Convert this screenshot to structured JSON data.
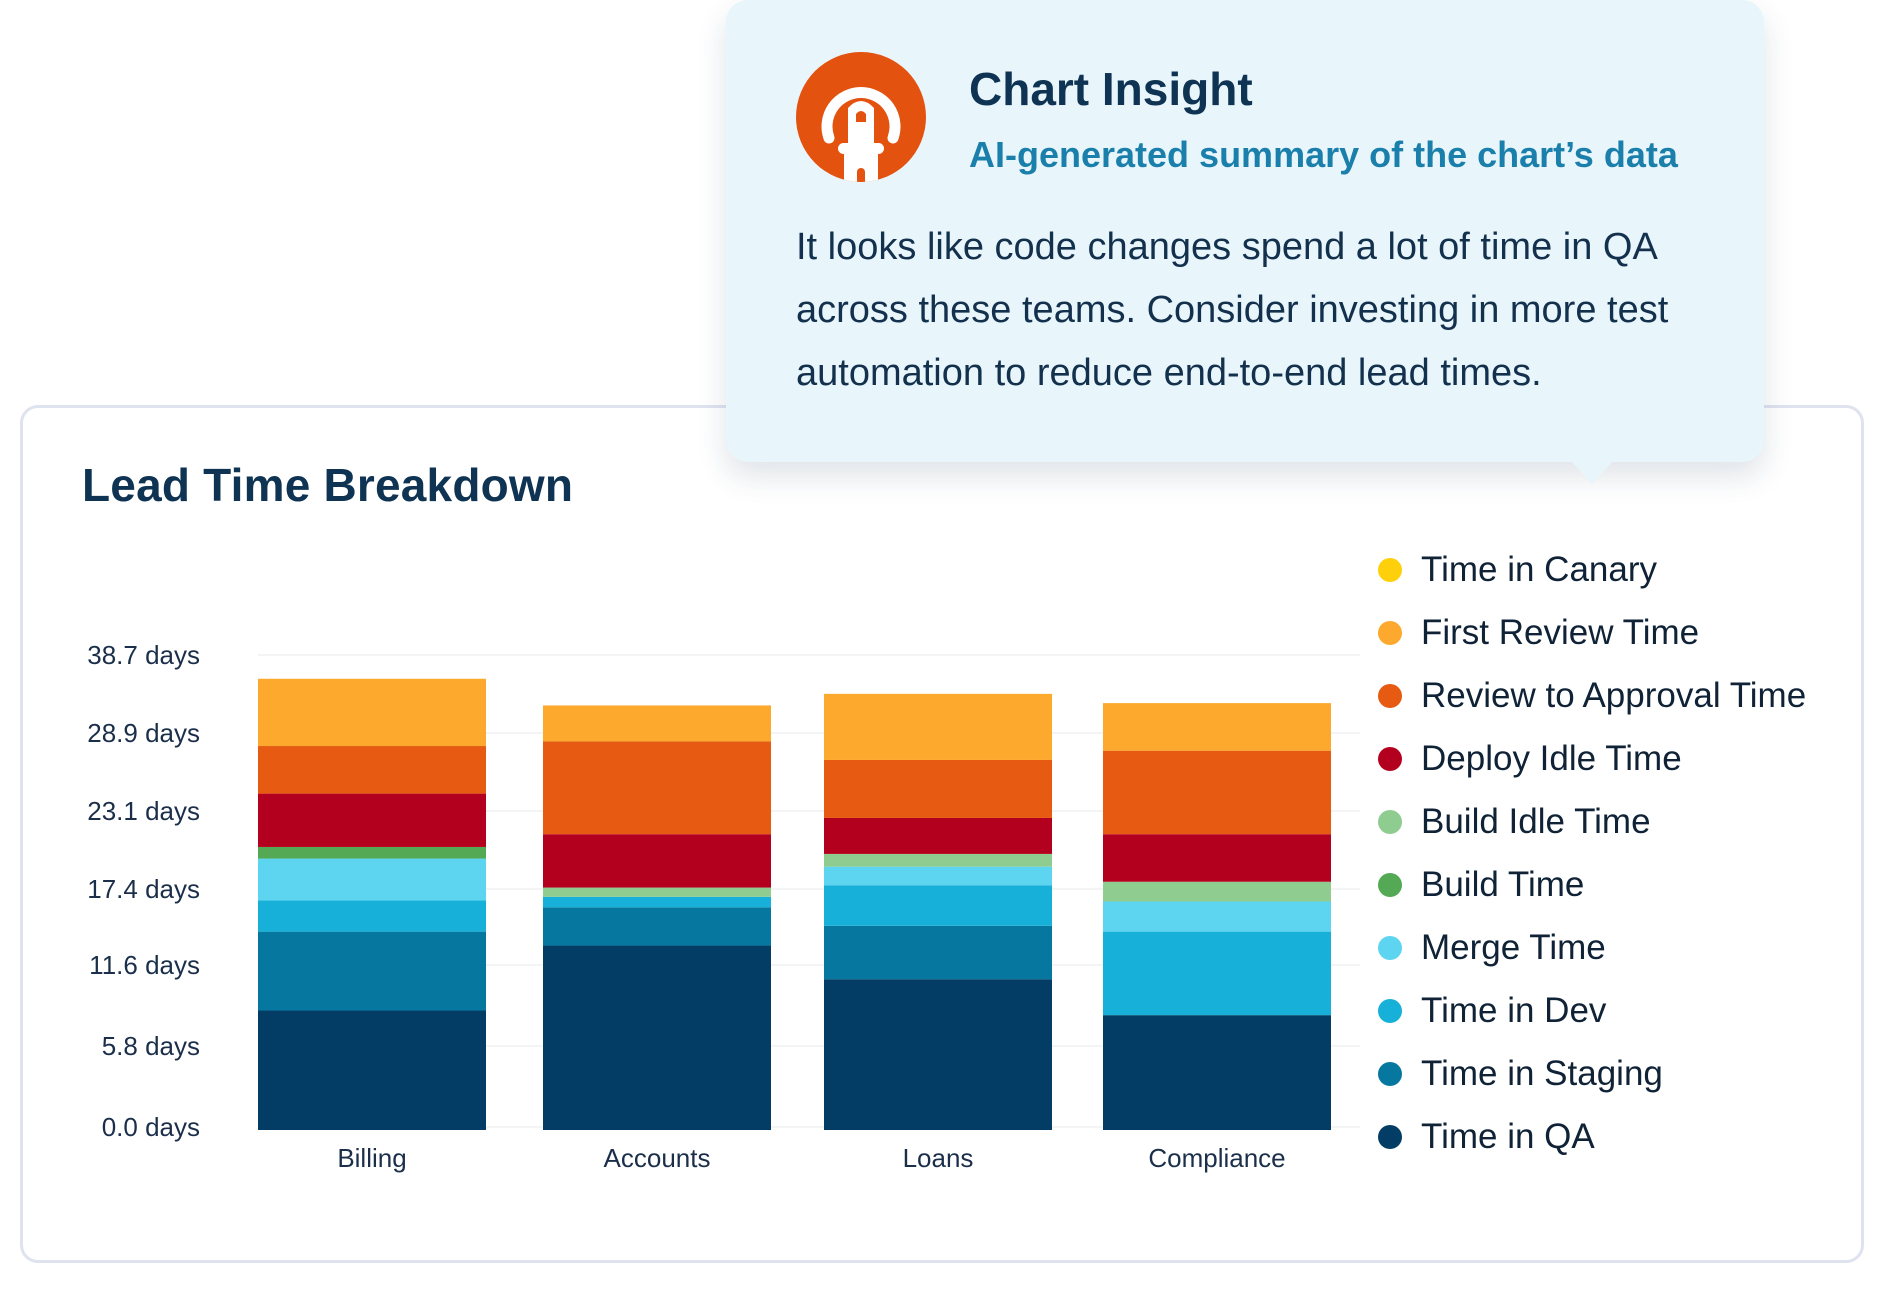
{
  "chart_data": {
    "type": "bar",
    "stacked": true,
    "title": "Lead Time Breakdown",
    "categories": [
      "Billing",
      "Accounts",
      "Loans",
      "Compliance"
    ],
    "y_tick_labels": [
      "0.0 days",
      "5.8 days",
      "11.6 days",
      "17.4 days",
      "23.1 days",
      "28.9 days",
      "38.7 days"
    ],
    "y_unit": "days",
    "grid": true,
    "legend_position": "right",
    "series": [
      {
        "name": "Time in QA",
        "color": "#033d66",
        "values": [
          10.3,
          15.9,
          13.0,
          9.9
        ]
      },
      {
        "name": "Time in Staging",
        "color": "#06779f",
        "values": [
          6.8,
          3.3,
          4.6,
          0.0
        ]
      },
      {
        "name": "Time in Dev",
        "color": "#16b0d8",
        "values": [
          2.7,
          0.9,
          3.5,
          7.2
        ]
      },
      {
        "name": "Merge Time",
        "color": "#5dd4f0",
        "values": [
          3.6,
          0.0,
          1.6,
          2.6
        ]
      },
      {
        "name": "Build Time",
        "color": "#53a954",
        "values": [
          1.0,
          0.0,
          0.0,
          0.0
        ]
      },
      {
        "name": "Build Idle Time",
        "color": "#8fcc90",
        "values": [
          0.0,
          0.8,
          1.1,
          1.7
        ]
      },
      {
        "name": "Deploy Idle Time",
        "color": "#b4001f",
        "values": [
          4.6,
          4.6,
          3.1,
          4.1
        ]
      },
      {
        "name": "Review to Approval Time",
        "color": "#e65a12",
        "values": [
          4.1,
          8.0,
          5.0,
          7.2
        ]
      },
      {
        "name": "First Review Time",
        "color": "#fca92e",
        "values": [
          5.8,
          3.1,
          5.7,
          4.1
        ]
      },
      {
        "name": "Time in Canary",
        "color": "#fed00c",
        "values": [
          0,
          0,
          0,
          0
        ]
      }
    ]
  },
  "popover": {
    "title": "Chart Insight",
    "subtitle": "AI-generated summary of the chart’s data",
    "body": "It looks like code changes spend a lot of time in QA across these teams. Consider investing in more test automation to reduce end-to-end lead times.",
    "logo_icon": "lighthouse-icon",
    "logo_color": "#e4520f"
  },
  "legend_order": [
    "Time in Canary",
    "First Review Time",
    "Review to Approval Time",
    "Deploy Idle Time",
    "Build Idle Time",
    "Build Time",
    "Merge Time",
    "Time in Dev",
    "Time in Staging",
    "Time in QA"
  ]
}
